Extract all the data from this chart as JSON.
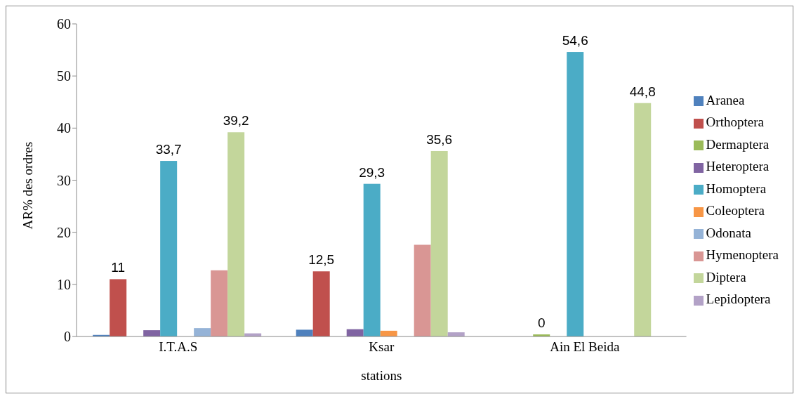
{
  "chart_data": {
    "type": "bar",
    "xlabel": "stations",
    "ylabel": "AR% des ordres",
    "categories": [
      "I.T.A.S",
      "Ksar",
      "Ain El Beida"
    ],
    "series": [
      {
        "name": "Aranea",
        "color": "#4f81bd",
        "values": [
          0.3,
          1.3,
          0
        ]
      },
      {
        "name": "Orthoptera",
        "color": "#c0504d",
        "values": [
          11,
          12.5,
          0
        ],
        "value_labels": [
          "11",
          "12,5",
          null
        ]
      },
      {
        "name": "Dermaptera",
        "color": "#9bbb59",
        "values": [
          0,
          0,
          0.4
        ],
        "value_labels": [
          null,
          null,
          "0"
        ]
      },
      {
        "name": "Heteroptera",
        "color": "#8064a2",
        "values": [
          1.2,
          1.4,
          0
        ]
      },
      {
        "name": "Homoptera",
        "color": "#4bacc6",
        "values": [
          33.7,
          29.3,
          54.6
        ],
        "value_labels": [
          "33,7",
          "29,3",
          "54,6"
        ]
      },
      {
        "name": "Coleoptera",
        "color": "#f79646",
        "values": [
          0,
          1.1,
          0
        ]
      },
      {
        "name": "Odonata",
        "color": "#95b3d7",
        "values": [
          1.6,
          0,
          0
        ]
      },
      {
        "name": "Hymenoptera",
        "color": "#d99694",
        "values": [
          12.7,
          17.6,
          0
        ]
      },
      {
        "name": "Diptera",
        "color": "#c3d69b",
        "values": [
          39.2,
          35.6,
          44.8
        ],
        "value_labels": [
          "39,2",
          "35,6",
          "44,8"
        ]
      },
      {
        "name": "Lepidoptera",
        "color": "#b3a2c7",
        "values": [
          0.6,
          0.8,
          0
        ]
      }
    ],
    "ylim": [
      0,
      60
    ],
    "yticks": [
      0,
      10,
      20,
      30,
      40,
      50,
      60
    ],
    "grid": false,
    "legend": "right"
  }
}
